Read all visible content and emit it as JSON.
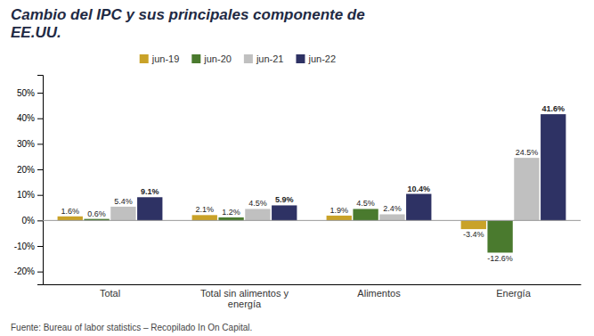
{
  "chart_data": {
    "type": "bar",
    "title": "Cambio del IPC y sus principales componente de\nEE.UU.",
    "categories": [
      "Total",
      "Total sin alimentos y\nenergía",
      "Alimentos",
      "Energía"
    ],
    "series": [
      {
        "name": "jun-19",
        "color": "#C9A228",
        "values": [
          1.6,
          2.1,
          1.9,
          -3.4
        ],
        "value_labels": [
          "1.6%",
          "2.1%",
          "1.9%",
          "-3.4%"
        ]
      },
      {
        "name": "jun-20",
        "color": "#4A7A2E",
        "values": [
          0.6,
          1.2,
          4.5,
          -12.6
        ],
        "value_labels": [
          "0.6%",
          "1.2%",
          "4.5%",
          "-12.6%"
        ]
      },
      {
        "name": "jun-21",
        "color": "#C0C0C0",
        "values": [
          5.4,
          4.5,
          2.4,
          24.5
        ],
        "value_labels": [
          "5.4%",
          "4.5%",
          "2.4%",
          "24.5%"
        ]
      },
      {
        "name": "jun-22",
        "color": "#2E3264",
        "values": [
          9.1,
          5.9,
          10.4,
          41.6
        ],
        "value_labels": [
          "9.1%",
          "5.9%",
          "10.4%",
          "41.6%"
        ]
      }
    ],
    "ylim": [
      -25,
      57
    ],
    "yticks": [
      {
        "value": -20,
        "label": "-20%"
      },
      {
        "value": -10,
        "label": "-10%"
      },
      {
        "value": 0,
        "label": "0%"
      },
      {
        "value": 10,
        "label": "10%"
      },
      {
        "value": 20,
        "label": "20%"
      },
      {
        "value": 30,
        "label": "30%"
      },
      {
        "value": 40,
        "label": "40%"
      },
      {
        "value": 50,
        "label": "50%"
      }
    ],
    "grid": false,
    "legend": "top",
    "data_labels": true,
    "annotations": [
      "Fuente: Bureau of labor statistics – Recopilado In On Capital."
    ]
  }
}
